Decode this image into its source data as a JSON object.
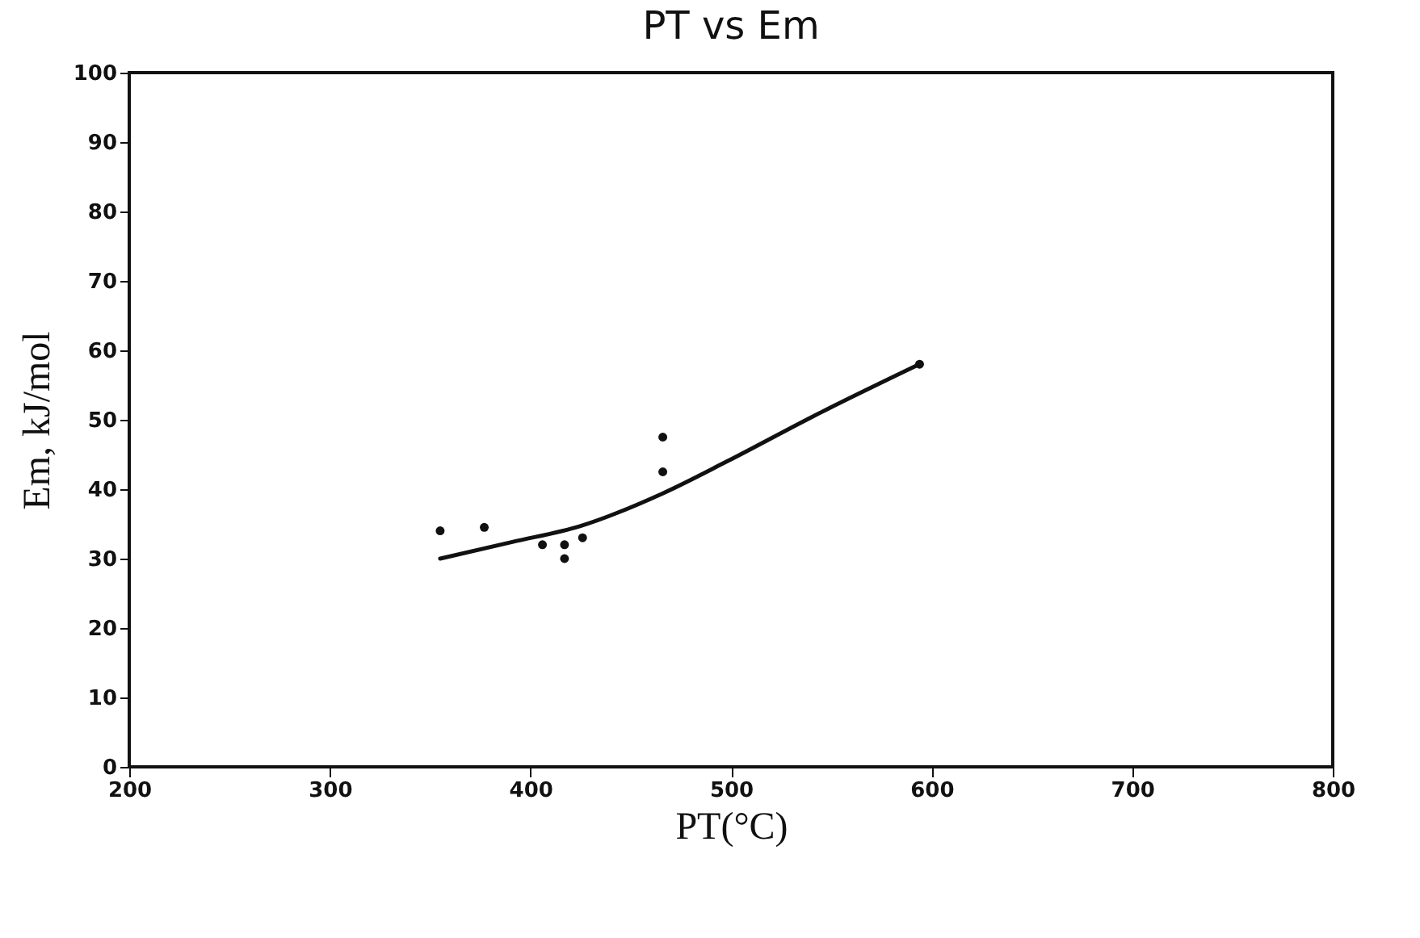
{
  "chart_data": {
    "type": "scatter",
    "title": "PT vs Em",
    "xlabel": "PT(°C)",
    "ylabel": "Em, kJ/mol",
    "xlim": [
      200,
      800
    ],
    "xticks": [
      200,
      300,
      400,
      500,
      600,
      700,
      800
    ],
    "ylim": [
      0,
      100
    ],
    "yticks": [
      0,
      10,
      20,
      30,
      40,
      50,
      60,
      70,
      80,
      90,
      100
    ],
    "grid": false,
    "marker": "circle",
    "series": [
      {
        "color": "#111111",
        "x": [
          355,
          377,
          406,
          417,
          417,
          426,
          466,
          466,
          594
        ],
        "values": [
          34,
          34.5,
          32,
          32,
          30,
          33,
          47.5,
          42.5,
          58
        ]
      },
      {
        "type": "line",
        "color": "#111111",
        "marker": "none",
        "line_style": "solid",
        "x": [
          355,
          391,
          425,
          466,
          498,
          541,
          594
        ],
        "values": [
          30,
          32.4,
          34.7,
          39.4,
          44,
          50.5,
          58
        ]
      }
    ]
  }
}
